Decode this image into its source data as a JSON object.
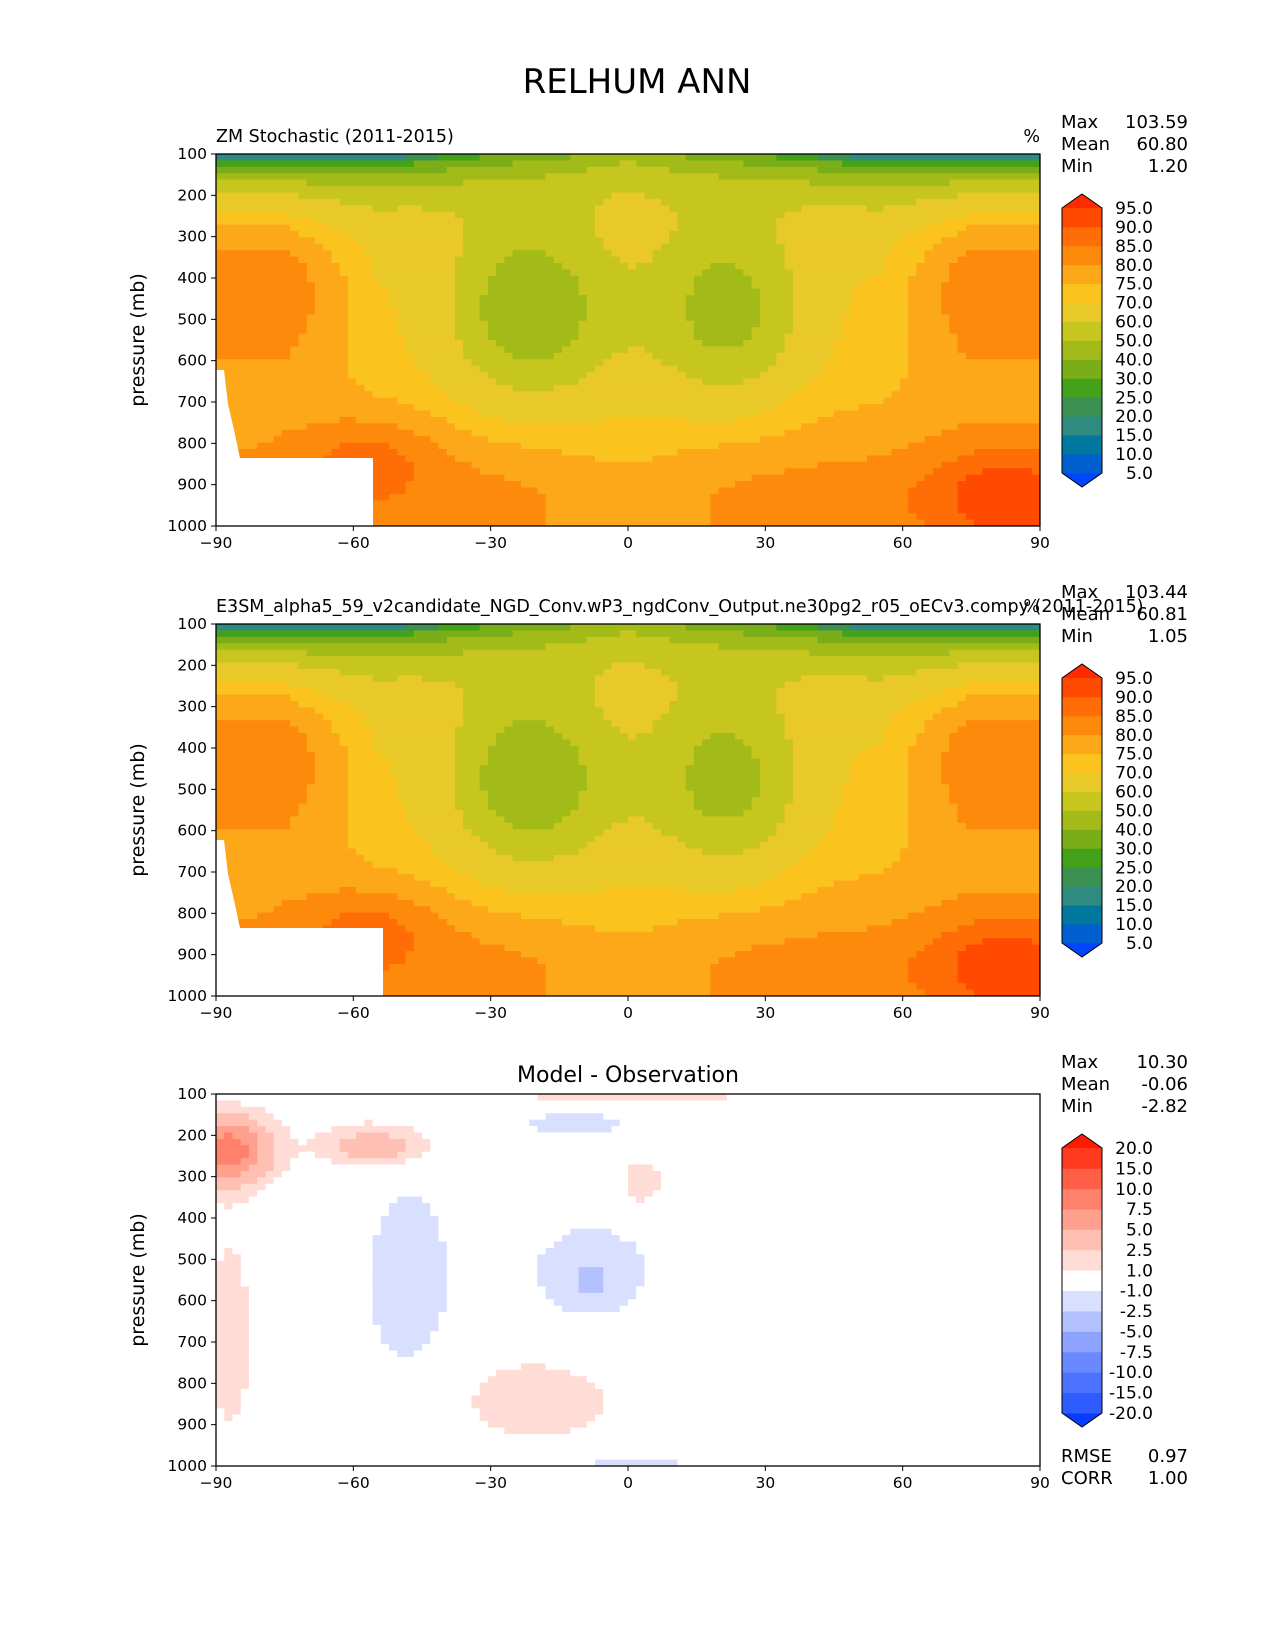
{
  "figure": {
    "title": "RELHUM ANN"
  },
  "colors": {
    "abs_levels": [
      "#0045ff",
      "#005fd0",
      "#00779c",
      "#2f8a80",
      "#3b9152",
      "#44a11a",
      "#7aae18",
      "#a3bb18",
      "#c6c61e",
      "#e9c928",
      "#fbc31e",
      "#fca818",
      "#fe8a0c",
      "#ff6d06",
      "#ff4a00",
      "#ff2a00"
    ],
    "diff_levels": [
      "#0a3cff",
      "#2f5cff",
      "#4d72ff",
      "#6a88ff",
      "#8ea3ff",
      "#b3c1ff",
      "#d9e0ff",
      "#ffffff",
      "#ffdcd6",
      "#ffbfb3",
      "#ffa08f",
      "#ff806b",
      "#ff5f47",
      "#ff3a1f",
      "#ff1a00"
    ]
  },
  "chart_data": [
    {
      "type": "heatmap",
      "title": "ZM Stochastic (2011-2015)",
      "units": "%",
      "ylabel": "pressure (mb)",
      "xlim": [
        -90,
        90
      ],
      "ylim": [
        1000,
        100
      ],
      "xticks": [
        "−90",
        "−60",
        "−30",
        "0",
        "30",
        "60",
        "90"
      ],
      "yticks": [
        "100",
        "200",
        "300",
        "400",
        "500",
        "600",
        "700",
        "800",
        "900",
        "1000"
      ],
      "stats": {
        "max_label": "Max",
        "max": "103.59",
        "mean_label": "Mean",
        "mean": "60.80",
        "min_label": "Min",
        "min": "1.20"
      },
      "colorbar_ticks": [
        "95.0",
        "90.0",
        "85.0",
        "80.0",
        "75.0",
        "70.0",
        "60.0",
        "50.0",
        "40.0",
        "30.0",
        "25.0",
        "20.0",
        "15.0",
        "10.0",
        "5.0"
      ]
    },
    {
      "type": "heatmap",
      "title": "E3SM_alpha5_59_v2candidate_NGD_Conv.wP3_ngdConv_Output.ne30pg2_r05_oECv3.compy (2011-2015)",
      "units": "%",
      "ylabel": "pressure (mb)",
      "xlim": [
        -90,
        90
      ],
      "ylim": [
        1000,
        100
      ],
      "xticks": [
        "−90",
        "−60",
        "−30",
        "0",
        "30",
        "60",
        "90"
      ],
      "yticks": [
        "100",
        "200",
        "300",
        "400",
        "500",
        "600",
        "700",
        "800",
        "900",
        "1000"
      ],
      "stats": {
        "max_label": "Max",
        "max": "103.44",
        "mean_label": "Mean",
        "mean": "60.81",
        "min_label": "Min",
        "min": "1.05"
      },
      "colorbar_ticks": [
        "95.0",
        "90.0",
        "85.0",
        "80.0",
        "75.0",
        "70.0",
        "60.0",
        "50.0",
        "40.0",
        "30.0",
        "25.0",
        "20.0",
        "15.0",
        "10.0",
        "5.0"
      ]
    },
    {
      "type": "heatmap",
      "title": "Model - Observation",
      "ylabel": "pressure (mb)",
      "xlim": [
        -90,
        90
      ],
      "ylim": [
        1000,
        100
      ],
      "xticks": [
        "−90",
        "−60",
        "−30",
        "0",
        "30",
        "60",
        "90"
      ],
      "yticks": [
        "100",
        "200",
        "300",
        "400",
        "500",
        "600",
        "700",
        "800",
        "900",
        "1000"
      ],
      "stats": {
        "max_label": "Max",
        "max": "10.30",
        "mean_label": "Mean",
        "mean": "-0.06",
        "min_label": "Min",
        "min": "-2.82"
      },
      "colorbar_ticks": [
        "20.0",
        "15.0",
        "10.0",
        "7.5",
        "5.0",
        "2.5",
        "1.0",
        "-1.0",
        "-2.5",
        "-5.0",
        "-7.5",
        "-10.0",
        "-15.0",
        "-20.0"
      ],
      "rmse_label": "RMSE",
      "rmse": "0.97",
      "corr_label": "CORR",
      "corr": "1.00"
    }
  ]
}
